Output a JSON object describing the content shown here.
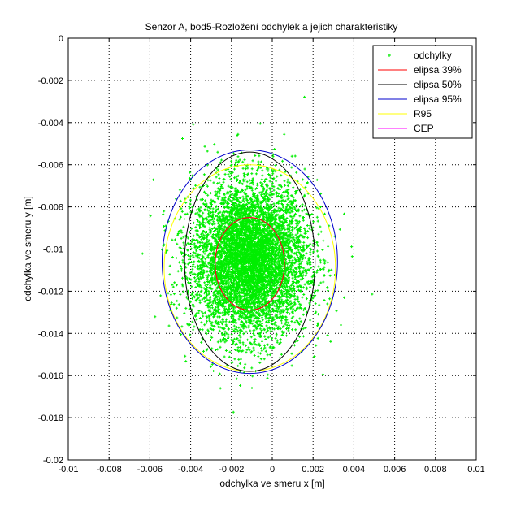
{
  "chart_data": {
    "type": "scatter",
    "title": "Senzor A, bod5-Rozložení odchylek a jejich charakteristiky",
    "xlabel": "odchylka ve smeru x [m]",
    "ylabel": "odchylka ve smeru y [m]",
    "xlim": [
      -0.01,
      0.01
    ],
    "ylim": [
      -0.02,
      0
    ],
    "x_ticks": [
      -0.01,
      -0.008,
      -0.006,
      -0.004,
      -0.002,
      0,
      0.002,
      0.004,
      0.006,
      0.008,
      0.01
    ],
    "x_tick_labels": [
      "-0.01",
      "-0.008",
      "-0.006",
      "-0.004",
      "-0.002",
      "0",
      "0.002",
      "0.004",
      "0.006",
      "0.008",
      "0.01"
    ],
    "y_ticks": [
      0,
      -0.002,
      -0.004,
      -0.006,
      -0.008,
      -0.01,
      -0.012,
      -0.014,
      -0.016,
      -0.018,
      -0.02
    ],
    "y_tick_labels": [
      "0",
      "-0.002",
      "-0.004",
      "-0.006",
      "-0.008",
      "-0.01",
      "-0.012",
      "-0.014",
      "-0.016",
      "-0.018",
      "-0.02"
    ],
    "grid": true,
    "legend_position": "top-right",
    "scatter": {
      "name": "odchylky",
      "color": "#00ee00",
      "center": [
        -0.0011,
        -0.0105
      ],
      "std": [
        0.0014,
        0.0018
      ],
      "count": 7000,
      "marker": "plus"
    },
    "series": [
      {
        "name": "odchylky",
        "kind": "points",
        "color": "#00ee00"
      },
      {
        "name": "elipsa 39%",
        "kind": "ellipse",
        "color": "#ff0000",
        "center": [
          -0.0011,
          -0.0107
        ],
        "radii": [
          0.0017,
          0.0022
        ]
      },
      {
        "name": "elipsa 50%",
        "kind": "ellipse",
        "color": "#000000",
        "center": [
          -0.0011,
          -0.0106
        ],
        "radii": [
          0.0032,
          0.0052
        ]
      },
      {
        "name": "elipsa 95%",
        "kind": "ellipse",
        "color": "#0000cc",
        "center": [
          -0.0011,
          -0.0106
        ],
        "radii": [
          0.0043,
          0.0053
        ]
      },
      {
        "name": "R95",
        "kind": "circle",
        "color": "#ffff00",
        "center": [
          -0.0011,
          -0.0109
        ],
        "radii": [
          0.0042,
          0.0049
        ]
      },
      {
        "name": "CEP",
        "kind": "circle",
        "color": "#ff00ff",
        "center": [
          -0.0011,
          -0.0107
        ],
        "radii": [
          0.0017,
          0.0022
        ]
      }
    ]
  }
}
